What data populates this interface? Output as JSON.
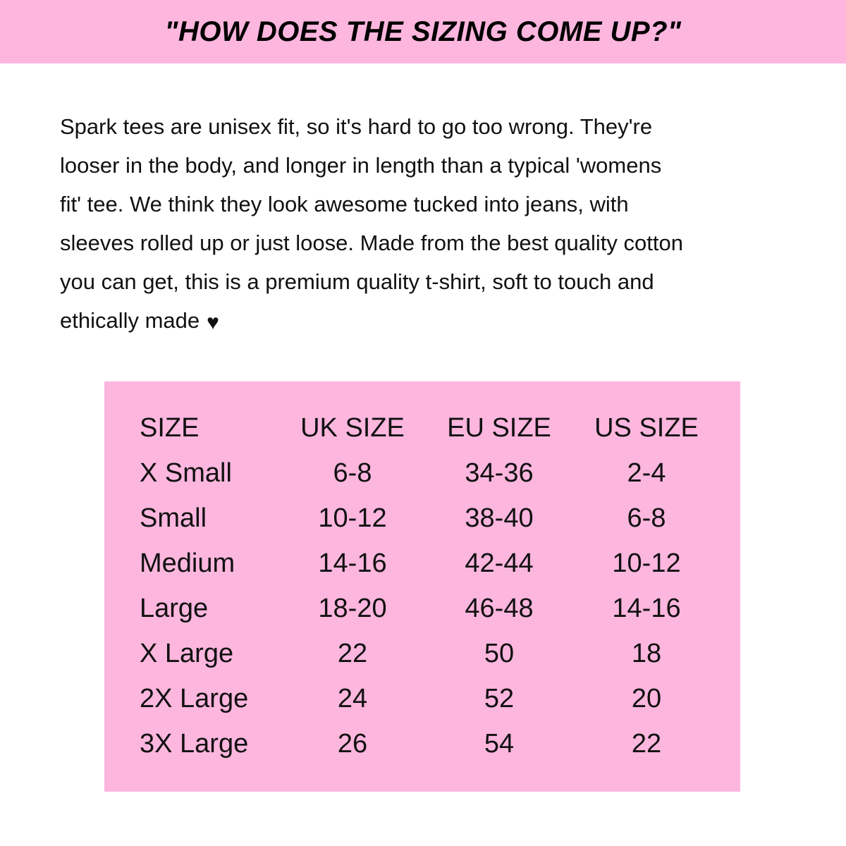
{
  "title": "\"HOW DOES THE SIZING COME UP?\"",
  "description_lines": [
    "Spark tees are unisex fit, so it's hard to go too wrong. They're",
    "looser in the body, and longer in length than a typical 'womens",
    "fit' tee. We think they look awesome tucked into jeans, with",
    "sleeves rolled up or just loose. Made from the best quality cotton",
    "you can get, this is a premium quality t-shirt, soft to touch and",
    "ethically made"
  ],
  "heart_icon": "heart-icon",
  "colors": {
    "accent_pink": "#FDB6DE",
    "text": "#111111"
  },
  "size_table": {
    "headers": [
      "SIZE",
      "UK SIZE",
      "EU SIZE",
      "US SIZE"
    ],
    "rows": [
      [
        "X Small",
        "6-8",
        "34-36",
        "2-4"
      ],
      [
        "Small",
        "10-12",
        "38-40",
        "6-8"
      ],
      [
        "Medium",
        "14-16",
        "42-44",
        "10-12"
      ],
      [
        "Large",
        "18-20",
        "46-48",
        "14-16"
      ],
      [
        "X Large",
        "22",
        "50",
        "18"
      ],
      [
        "2X Large",
        "24",
        "52",
        "20"
      ],
      [
        "3X Large",
        "26",
        "54",
        "22"
      ]
    ]
  }
}
